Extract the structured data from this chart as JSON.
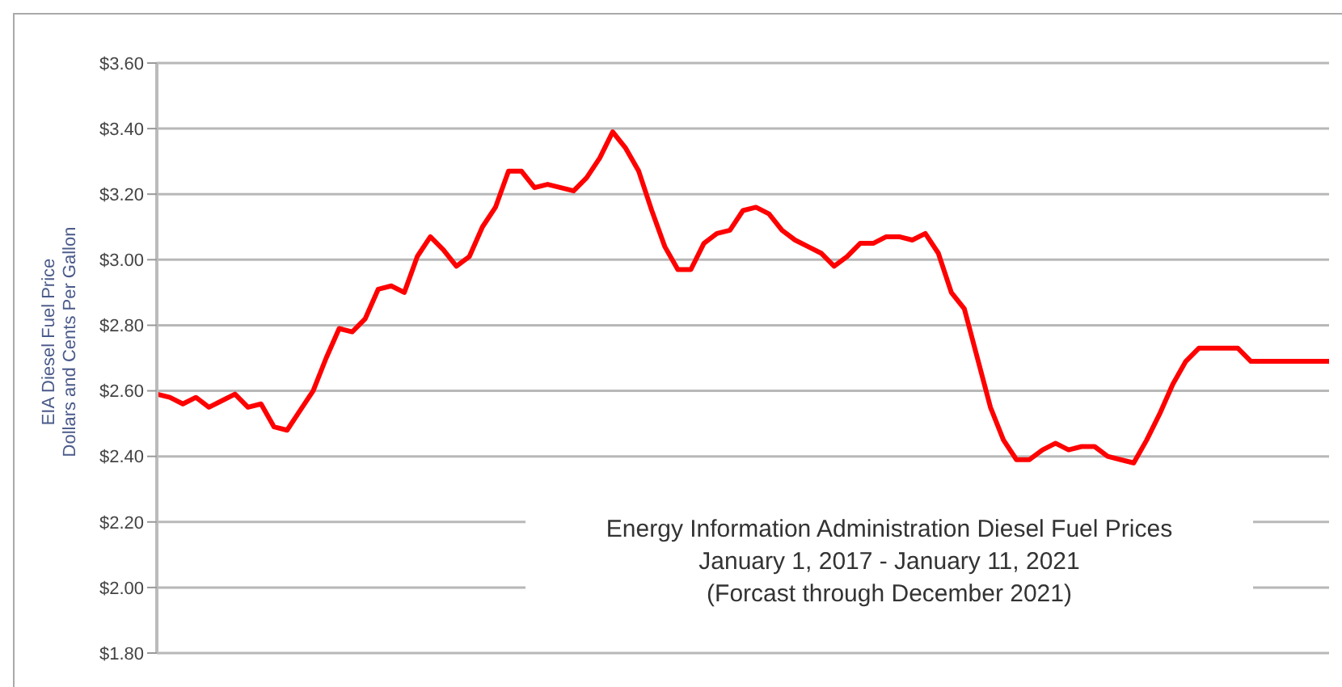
{
  "chart_data": {
    "type": "line",
    "ylabel": "EIA Diesel Fuel Price\nDollars and Cents Per Gallon",
    "annotations": [
      "Energy Information Administration Diesel Fuel Prices",
      "January 1, 2017 - January 11, 2021",
      "(Forcast through December 2021)"
    ],
    "categories": [
      null,
      null,
      null,
      null,
      null,
      null,
      null,
      null,
      null,
      null,
      null,
      null,
      null,
      null,
      null,
      null,
      null,
      null,
      null,
      null,
      null,
      null,
      null,
      null,
      null,
      null,
      null,
      null,
      null,
      null,
      null,
      null,
      null,
      null,
      null,
      null,
      null,
      null,
      null,
      null,
      null,
      null,
      null,
      null,
      null,
      null,
      null,
      null,
      null,
      null,
      null,
      null,
      null,
      null,
      null,
      null,
      null,
      null,
      null,
      null,
      null,
      null,
      null,
      null,
      null,
      null,
      null,
      null,
      null,
      null,
      null,
      null,
      null,
      null,
      null,
      null,
      null,
      null,
      null,
      null,
      null,
      null,
      null,
      null,
      null,
      null,
      null,
      null,
      null,
      null,
      null
    ],
    "series": [
      {
        "color": "#ff0000",
        "values": [
          2.59,
          2.58,
          2.56,
          2.58,
          2.55,
          2.57,
          2.59,
          2.55,
          2.56,
          2.49,
          2.48,
          2.54,
          2.6,
          2.7,
          2.79,
          2.78,
          2.82,
          2.91,
          2.92,
          2.9,
          3.01,
          3.07,
          3.03,
          2.98,
          3.01,
          3.1,
          3.16,
          3.27,
          3.27,
          3.22,
          3.23,
          3.22,
          3.21,
          3.25,
          3.31,
          3.39,
          3.34,
          3.27,
          3.15,
          3.04,
          2.97,
          2.97,
          3.05,
          3.08,
          3.09,
          3.15,
          3.16,
          3.14,
          3.09,
          3.06,
          3.04,
          3.02,
          2.98,
          3.01,
          3.05,
          3.05,
          3.07,
          3.07,
          3.06,
          3.08,
          3.02,
          2.9,
          2.85,
          2.7,
          2.55,
          2.45,
          2.39,
          2.39,
          2.42,
          2.44,
          2.42,
          2.43,
          2.43,
          2.4,
          2.39,
          2.38,
          2.45,
          2.53,
          2.62,
          2.69,
          2.73,
          2.73,
          2.73,
          2.73,
          2.69,
          2.69,
          2.69,
          2.69,
          2.69,
          2.69,
          2.69
        ]
      }
    ],
    "ylim": [
      1.8,
      3.6
    ],
    "yticks": [
      {
        "value": 1.8,
        "label": "$1.80"
      },
      {
        "value": 2,
        "label": "$2.00"
      },
      {
        "value": 2.2,
        "label": "$2.20"
      },
      {
        "value": 2.4,
        "label": "$2.40"
      },
      {
        "value": 2.6,
        "label": "$2.60"
      },
      {
        "value": 2.8,
        "label": "$2.80"
      },
      {
        "value": 3,
        "label": "$3.00"
      },
      {
        "value": 3.2,
        "label": "$3.20"
      },
      {
        "value": 3.4,
        "label": "$3.40"
      },
      {
        "value": 3.6,
        "label": "$3.60"
      }
    ],
    "grid": "y",
    "legend": false,
    "marker": "none",
    "line_style": "solid"
  }
}
